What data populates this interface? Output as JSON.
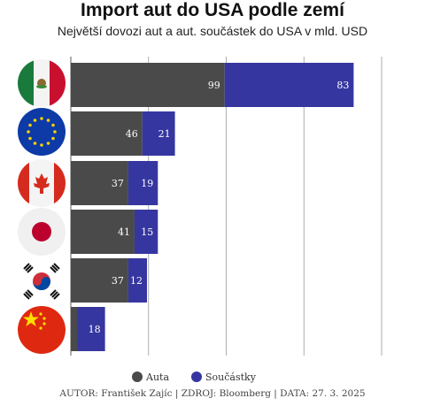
{
  "title": "Import aut do USA podle zemí",
  "subtitle": "Největší dovozi aut a aut. součástek do USA v mld. USD",
  "footer": "AUTOR: František Zajíc | ZDROJ: Bloomberg | DATA:  27. 3. 2025",
  "colors": {
    "auta": "#4a4a4a",
    "soucastky": "#3636a0",
    "grid": "#9a9a9a"
  },
  "chart_data": {
    "type": "bar",
    "orientation": "horizontal",
    "stacked": true,
    "categories": [
      "Mexiko",
      "EU",
      "Kanada",
      "Japonsko",
      "Jižní Korea",
      "Čína"
    ],
    "category_icons": [
      "mexico-flag-icon",
      "eu-flag-icon",
      "canada-flag-icon",
      "japan-flag-icon",
      "south-korea-flag-icon",
      "china-flag-icon"
    ],
    "series": [
      {
        "name": "Auta",
        "values": [
          99,
          46,
          37,
          41,
          37,
          4
        ]
      },
      {
        "name": "Součástky",
        "values": [
          83,
          21,
          19,
          15,
          12,
          18
        ]
      }
    ],
    "value_labels": [
      [
        "99",
        "46",
        "37",
        "41",
        "37",
        ""
      ],
      [
        "83",
        "21",
        "19",
        "15",
        "12",
        "18"
      ]
    ],
    "xlim": [
      0,
      200
    ],
    "x_gridlines": [
      0,
      50,
      100,
      150,
      200
    ],
    "grid": true,
    "legend_position": "bottom"
  }
}
